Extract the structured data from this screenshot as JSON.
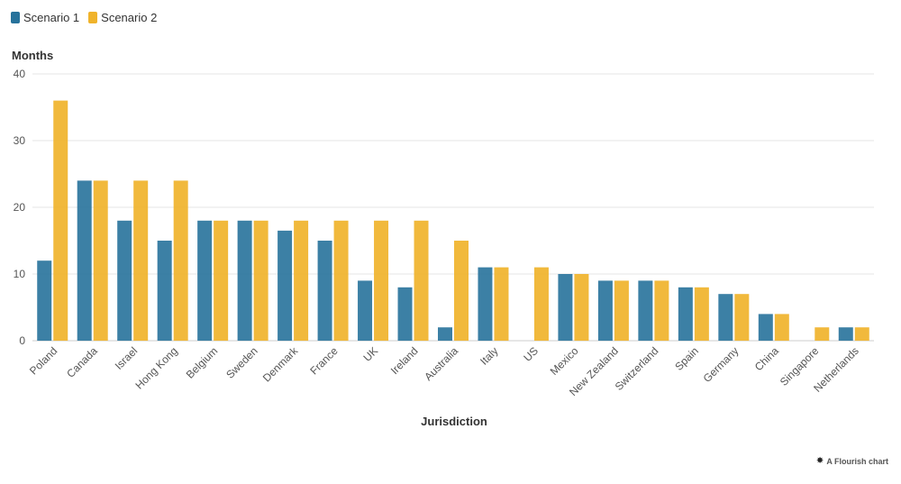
{
  "legend": {
    "series1": "Scenario 1",
    "series2": "Scenario 2"
  },
  "credit": {
    "icon": "flourish-star-icon",
    "text": "A Flourish chart"
  },
  "colors": {
    "series1": "#27729b",
    "series2": "#f0b32b",
    "grid": "#e6e6e6",
    "axis": "#cccccc"
  },
  "chart_data": {
    "type": "bar",
    "title": "",
    "xlabel": "Jurisdiction",
    "ylabel": "Months",
    "ylim": [
      0,
      40
    ],
    "yticks": [
      0,
      10,
      20,
      30,
      40
    ],
    "grid": true,
    "legend_position": "top-left",
    "categories": [
      "Poland",
      "Canada",
      "Israel",
      "Hong Kong",
      "Belgium",
      "Sweden",
      "Denmark",
      "France",
      "UK",
      "Ireland",
      "Australia",
      "Italy",
      "US",
      "Mexico",
      "New Zealand",
      "Switzerland",
      "Spain",
      "Germany",
      "China",
      "Singapore",
      "Netherlands"
    ],
    "series": [
      {
        "name": "Scenario 1",
        "values": [
          12,
          24,
          18,
          15,
          18,
          18,
          16.5,
          15,
          9,
          8,
          2,
          11,
          0,
          10,
          9,
          9,
          8,
          7,
          4,
          0,
          2
        ]
      },
      {
        "name": "Scenario 2",
        "values": [
          36,
          24,
          24,
          24,
          18,
          18,
          18,
          18,
          18,
          18,
          15,
          11,
          11,
          10,
          9,
          9,
          8,
          7,
          4,
          2,
          2
        ]
      }
    ]
  }
}
